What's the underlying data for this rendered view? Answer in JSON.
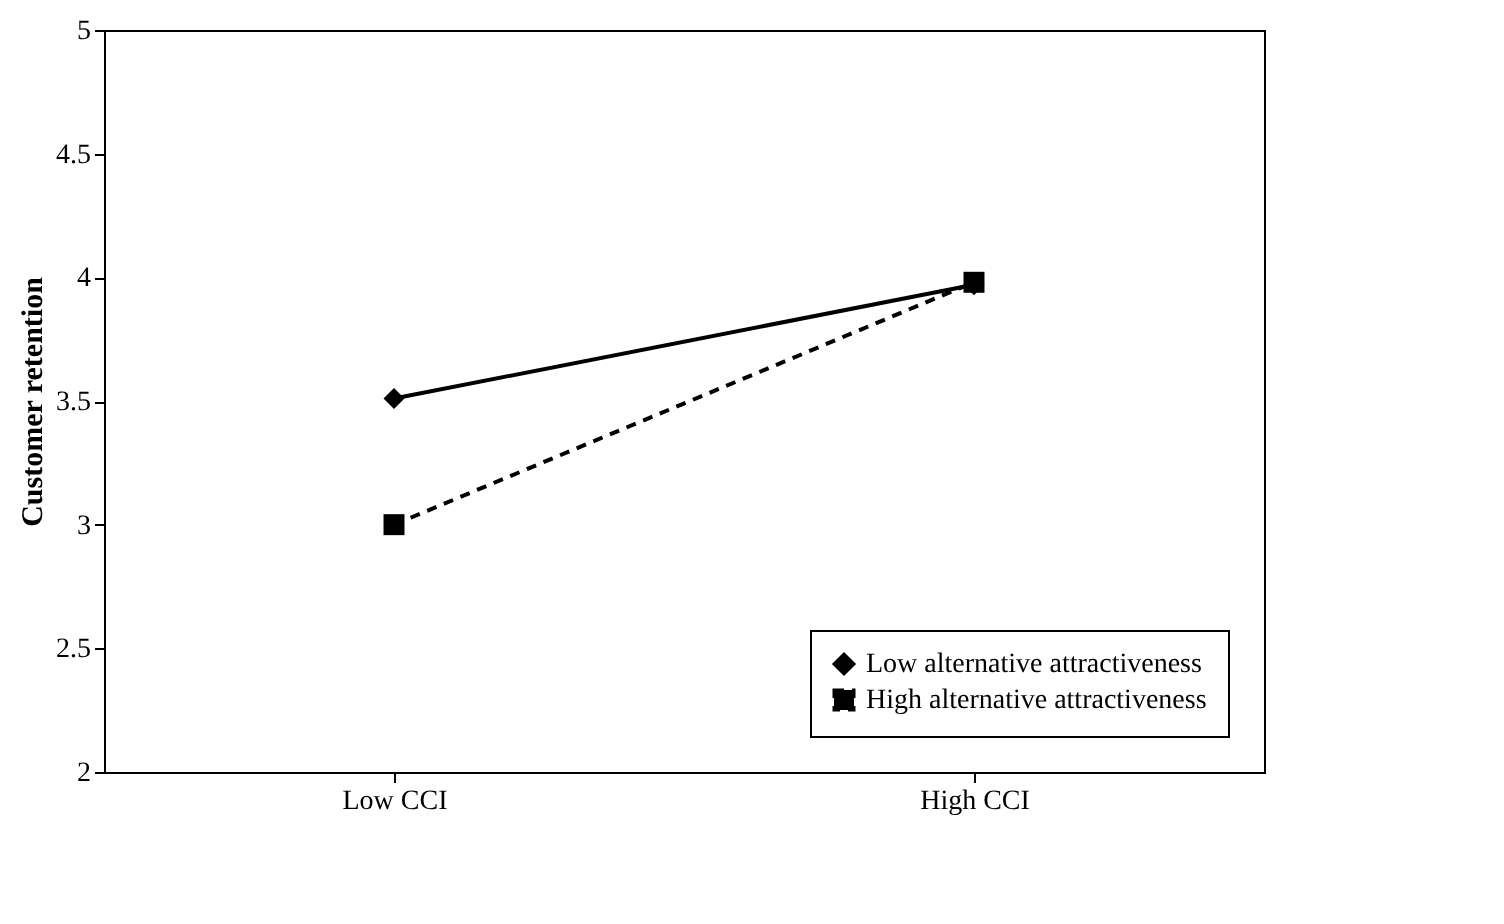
{
  "chart_data": {
    "type": "line",
    "ylabel": "Customer retention",
    "categories": [
      "Low CCI",
      "High CCI"
    ],
    "series": [
      {
        "name": "Low alternative attractiveness",
        "color": "#000000",
        "values": [
          3.51,
          3.97
        ],
        "marker": "diamond",
        "line_style": "solid"
      },
      {
        "name": "High alternative attractiveness",
        "color": "#000000",
        "values": [
          3.0,
          3.98
        ],
        "marker": "square",
        "line_style": "dashed"
      }
    ],
    "ylim": [
      2,
      5
    ],
    "yticks": [
      2,
      2.5,
      3,
      3.5,
      4,
      4.5,
      5
    ],
    "grid": false,
    "legend": "bottom right"
  }
}
